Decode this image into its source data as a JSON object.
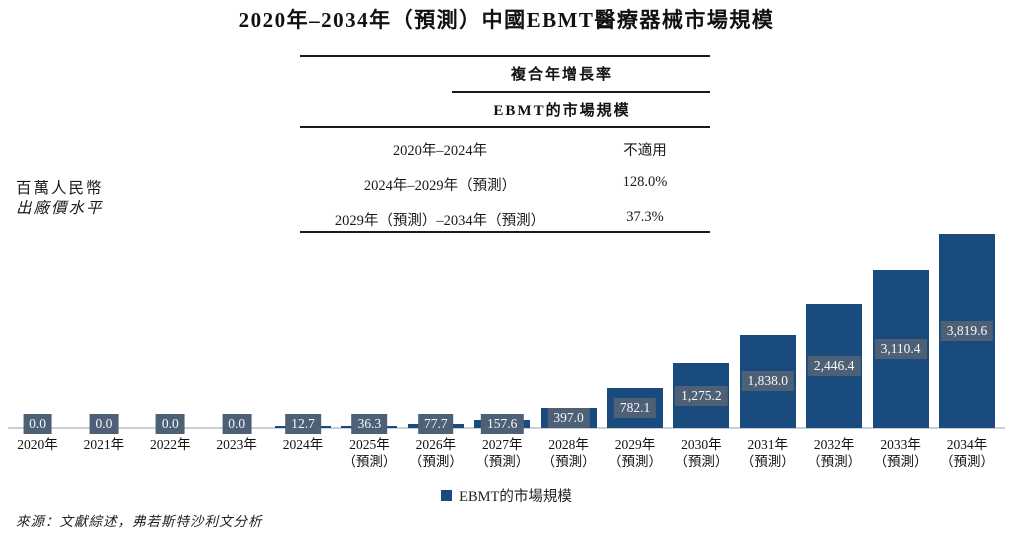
{
  "title": "2020年–2034年（預測）中國EBMT醫療器械市場規模",
  "axis_note": {
    "line1": "百萬人民幣",
    "line2": "出廠價水平"
  },
  "cagr_table": {
    "header_top": "複合年增長率",
    "header_sub": "EBMT的市場規模",
    "rows": [
      {
        "period": "2020年–2024年",
        "value": "不適用"
      },
      {
        "period": "2024年–2029年（預測）",
        "value": "128.0%"
      },
      {
        "period": "2029年（預測）–2034年（預測）",
        "value": "37.3%"
      }
    ]
  },
  "legend": {
    "label": "EBMT的市場規模"
  },
  "source": "來源：文獻綜述，弗若斯特沙利文分析",
  "colors": {
    "bar": "#1A4B7E",
    "label_box": "#4E6076",
    "axis_line": "#c9cfd8"
  },
  "chart_data": {
    "type": "bar",
    "title": "2020年–2034年（預測）中國EBMT醫療器械市場規模",
    "unit": "百萬人民幣，出廠價水平",
    "series_name": "EBMT的市場規模",
    "categories": [
      "2020年",
      "2021年",
      "2022年",
      "2023年",
      "2024年",
      "2025年（預測）",
      "2026年（預測）",
      "2027年（預測）",
      "2028年（預測）",
      "2029年（預測）",
      "2030年（預測）",
      "2031年（預測）",
      "2032年（預測）",
      "2033年（預測）",
      "2034年（預測）"
    ],
    "values": [
      0.0,
      0.0,
      0.0,
      0.0,
      12.7,
      36.3,
      77.7,
      157.6,
      397.0,
      782.1,
      1275.2,
      1838.0,
      2446.4,
      3110.4,
      3819.6
    ],
    "value_labels": [
      "0.0",
      "0.0",
      "0.0",
      "0.0",
      "12.7",
      "36.3",
      "77.7",
      "157.6",
      "397.0",
      "782.1",
      "1,275.2",
      "1,838.0",
      "2,446.4",
      "3,110.4",
      "3,819.6"
    ],
    "ylim": [
      0,
      4000
    ],
    "grid": false,
    "legend_position": "bottom",
    "cagr_annotations": [
      {
        "period": "2020年–2024年",
        "cagr": "不適用"
      },
      {
        "period": "2024年–2029年（預測）",
        "cagr": "128.0%"
      },
      {
        "period": "2029年（預測）–2034年（預測）",
        "cagr": "37.3%"
      }
    ]
  }
}
